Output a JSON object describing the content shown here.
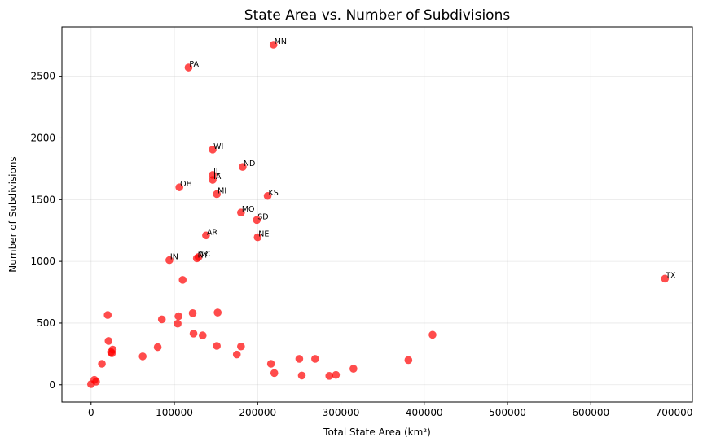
{
  "chart_data": {
    "type": "scatter",
    "title": "State Area vs. Number of Subdivisions",
    "xlabel": "Total State Area (km²)",
    "ylabel": "Number of Subdivisions",
    "xlim": [
      -35000,
      722000
    ],
    "ylim": [
      -140,
      2900
    ],
    "xticks": [
      0,
      100000,
      200000,
      300000,
      400000,
      500000,
      600000,
      700000
    ],
    "yticks": [
      0,
      500,
      1000,
      1500,
      2000,
      2500
    ],
    "grid": true,
    "marker_color": "#ff0000",
    "marker_alpha": 0.7,
    "labeled_points": [
      {
        "label": "MN",
        "x": 219000,
        "y": 2755
      },
      {
        "label": "PA",
        "x": 117000,
        "y": 2570
      },
      {
        "label": "WI",
        "x": 146000,
        "y": 1905
      },
      {
        "label": "ND",
        "x": 182000,
        "y": 1765
      },
      {
        "label": "IL",
        "x": 146000,
        "y": 1700
      },
      {
        "label": "IA",
        "x": 146000,
        "y": 1660
      },
      {
        "label": "OH",
        "x": 106000,
        "y": 1600
      },
      {
        "label": "MI",
        "x": 151000,
        "y": 1545
      },
      {
        "label": "KS",
        "x": 212000,
        "y": 1530
      },
      {
        "label": "MO",
        "x": 180000,
        "y": 1395
      },
      {
        "label": "SD",
        "x": 199000,
        "y": 1335
      },
      {
        "label": "AR",
        "x": 138000,
        "y": 1210
      },
      {
        "label": "NE",
        "x": 200000,
        "y": 1195
      },
      {
        "label": "NC",
        "x": 129000,
        "y": 1035
      },
      {
        "label": "NY",
        "x": 127000,
        "y": 1025
      },
      {
        "label": "IN",
        "x": 94000,
        "y": 1010
      },
      {
        "label": "TX",
        "x": 689000,
        "y": 860
      }
    ],
    "unlabeled_points": [
      {
        "x": 110000,
        "y": 850
      },
      {
        "x": 20000,
        "y": 565
      },
      {
        "x": 152000,
        "y": 585
      },
      {
        "x": 122000,
        "y": 580
      },
      {
        "x": 105000,
        "y": 555
      },
      {
        "x": 85000,
        "y": 530
      },
      {
        "x": 104000,
        "y": 495
      },
      {
        "x": 123000,
        "y": 415
      },
      {
        "x": 134000,
        "y": 400
      },
      {
        "x": 410000,
        "y": 405
      },
      {
        "x": 21000,
        "y": 355
      },
      {
        "x": 151000,
        "y": 315
      },
      {
        "x": 180000,
        "y": 310
      },
      {
        "x": 80000,
        "y": 305
      },
      {
        "x": 26000,
        "y": 285
      },
      {
        "x": 24000,
        "y": 265
      },
      {
        "x": 25000,
        "y": 255
      },
      {
        "x": 175000,
        "y": 245
      },
      {
        "x": 62000,
        "y": 230
      },
      {
        "x": 250000,
        "y": 210
      },
      {
        "x": 269000,
        "y": 210
      },
      {
        "x": 381000,
        "y": 200
      },
      {
        "x": 13000,
        "y": 170
      },
      {
        "x": 216000,
        "y": 170
      },
      {
        "x": 315000,
        "y": 130
      },
      {
        "x": 220000,
        "y": 95
      },
      {
        "x": 294000,
        "y": 80
      },
      {
        "x": 253000,
        "y": 75
      },
      {
        "x": 286000,
        "y": 72
      },
      {
        "x": 4000,
        "y": 40
      },
      {
        "x": 6000,
        "y": 25
      },
      {
        "x": 0,
        "y": 5
      }
    ]
  }
}
